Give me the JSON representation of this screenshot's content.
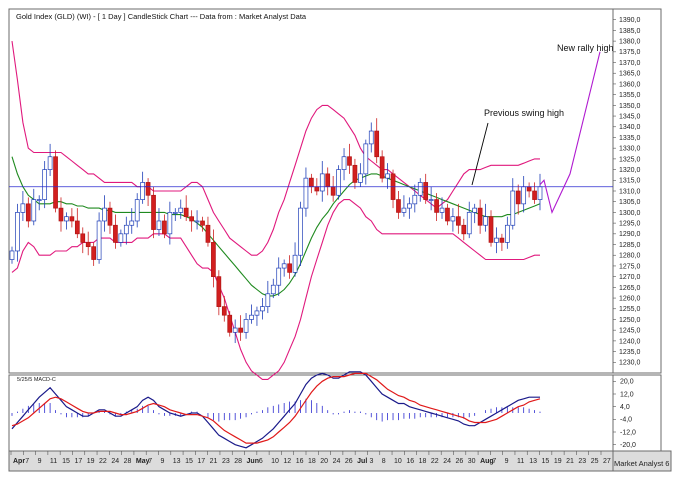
{
  "chart_data": [
    {
      "type": "candlestick",
      "title": "Gold Index (GLD) (WI) - [ 1 Day ] CandleStick Chart --- Data from : Market Analyst Data",
      "ylim": [
        1225,
        1395
      ],
      "y_ticks": [
        "1230,0",
        "1235,0",
        "1240,0",
        "1245,0",
        "1250,0",
        "1255,0",
        "1260,0",
        "1265,0",
        "1270,0",
        "1275,0",
        "1280,0",
        "1285,0",
        "1290,0",
        "1295,0",
        "1300,0",
        "1305,0",
        "1310,0",
        "1315,0",
        "1320,0",
        "1325,0",
        "1330,0",
        "1335,0",
        "1340,0",
        "1345,0",
        "1350,0",
        "1355,0",
        "1360,0",
        "1365,0",
        "1370,0",
        "1375,0",
        "1380,0",
        "1385,0",
        "1390,0"
      ],
      "horizontal_line": 1312,
      "annotations": [
        {
          "label": "New rally high"
        },
        {
          "label": "Previous swing high"
        }
      ],
      "x_labels": [
        "Apr",
        "7",
        "9",
        "11",
        "15",
        "17",
        "19",
        "22",
        "24",
        "28",
        "May",
        "7",
        "9",
        "13",
        "15",
        "17",
        "21",
        "23",
        "28",
        "Jun",
        "6",
        "10",
        "12",
        "16",
        "18",
        "20",
        "24",
        "26",
        "Jul",
        "3",
        "8",
        "10",
        "16",
        "18",
        "22",
        "24",
        "26",
        "30",
        "Aug",
        "7",
        "9",
        "11",
        "13",
        "15",
        "19",
        "21",
        "23",
        "25",
        "27"
      ],
      "candles_close": [
        1282,
        1300,
        1304,
        1296,
        1306,
        1306,
        1320,
        1326,
        1302,
        1296,
        1298,
        1296,
        1290,
        1286,
        1284,
        1278,
        1296,
        1302,
        1294,
        1286,
        1290,
        1294,
        1296,
        1306,
        1314,
        1308,
        1292,
        1296,
        1290,
        1300,
        1300,
        1302,
        1298,
        1296,
        1296,
        1294,
        1286,
        1270,
        1256,
        1252,
        1244,
        1246,
        1244,
        1250,
        1252,
        1254,
        1256,
        1262,
        1266,
        1274,
        1276,
        1272,
        1280,
        1302,
        1316,
        1312,
        1310,
        1318,
        1312,
        1308,
        1320,
        1326,
        1322,
        1314,
        1318,
        1332,
        1338,
        1326,
        1316,
        1318,
        1306,
        1300,
        1302,
        1304,
        1308,
        1314,
        1306,
        1306,
        1300,
        1302,
        1296,
        1298,
        1294,
        1290,
        1300,
        1302,
        1294,
        1298,
        1286,
        1288,
        1286,
        1294,
        1310,
        1304,
        1312,
        1310,
        1306,
        1312
      ],
      "bollinger_upper": [
        1380,
        1362,
        1342,
        1330,
        1328,
        1328,
        1328,
        1328,
        1328,
        1328,
        1326,
        1324,
        1322,
        1320,
        1318,
        1318,
        1316,
        1314,
        1314,
        1314,
        1314,
        1314,
        1314,
        1312,
        1312,
        1312,
        1310,
        1310,
        1310,
        1310,
        1310,
        1310,
        1312,
        1314,
        1314,
        1312,
        1306,
        1300,
        1296,
        1292,
        1288,
        1286,
        1284,
        1282,
        1280,
        1280,
        1282,
        1286,
        1292,
        1300,
        1306,
        1314,
        1322,
        1330,
        1338,
        1344,
        1348,
        1350,
        1350,
        1348,
        1346,
        1344,
        1340,
        1336,
        1330,
        1326,
        1324,
        1322,
        1320,
        1320,
        1318,
        1316,
        1314,
        1312,
        1310,
        1308,
        1306,
        1304,
        1302,
        1304,
        1306,
        1310,
        1314,
        1318,
        1320,
        1320,
        1320,
        1321,
        1322,
        1322,
        1322,
        1322,
        1322,
        1322,
        1323,
        1324,
        1325,
        1325
      ],
      "bollinger_middle": [
        1326,
        1318,
        1312,
        1308,
        1306,
        1304,
        1304,
        1304,
        1305,
        1305,
        1304,
        1304,
        1303,
        1303,
        1302,
        1302,
        1302,
        1301,
        1301,
        1300,
        1300,
        1300,
        1300,
        1300,
        1300,
        1300,
        1300,
        1300,
        1300,
        1299,
        1299,
        1299,
        1298,
        1297,
        1295,
        1293,
        1290,
        1287,
        1284,
        1281,
        1278,
        1275,
        1272,
        1269,
        1266,
        1264,
        1262,
        1261,
        1261,
        1262,
        1264,
        1267,
        1271,
        1276,
        1282,
        1288,
        1293,
        1297,
        1300,
        1304,
        1307,
        1310,
        1313,
        1315,
        1316,
        1317,
        1318,
        1318,
        1317,
        1316,
        1315,
        1314,
        1313,
        1312,
        1311,
        1310,
        1309,
        1308,
        1307,
        1306,
        1305,
        1304,
        1303,
        1302,
        1301,
        1300,
        1299,
        1298,
        1298,
        1298,
        1298,
        1299,
        1299,
        1300,
        1301,
        1302,
        1303,
        1304
      ],
      "bollinger_lower": [
        1272,
        1274,
        1282,
        1286,
        1284,
        1280,
        1280,
        1280,
        1282,
        1282,
        1282,
        1284,
        1284,
        1286,
        1286,
        1286,
        1288,
        1288,
        1288,
        1286,
        1286,
        1286,
        1286,
        1288,
        1288,
        1288,
        1290,
        1290,
        1290,
        1288,
        1288,
        1288,
        1284,
        1280,
        1276,
        1274,
        1274,
        1272,
        1266,
        1260,
        1252,
        1244,
        1236,
        1230,
        1226,
        1224,
        1222,
        1222,
        1224,
        1226,
        1230,
        1236,
        1242,
        1250,
        1260,
        1270,
        1278,
        1286,
        1294,
        1300,
        1304,
        1306,
        1306,
        1304,
        1302,
        1298,
        1296,
        1292,
        1290,
        1290,
        1290,
        1290,
        1290,
        1290,
        1290,
        1290,
        1290,
        1290,
        1290,
        1290,
        1290,
        1290,
        1288,
        1286,
        1284,
        1282,
        1280,
        1278,
        1278,
        1278,
        1278,
        1278,
        1278,
        1278,
        1278,
        1279,
        1280,
        1280
      ],
      "projection": [
        [
          1313,
          0
        ],
        [
          1315,
          4
        ],
        [
          1300,
          12
        ],
        [
          1318,
          30
        ],
        [
          1375,
          60
        ]
      ]
    },
    {
      "type": "line",
      "indicator_label": "5/25/5 MACD-C",
      "ylim": [
        -24,
        24
      ],
      "y_ticks": [
        "20,0",
        "12,0",
        "4,0",
        "-4,0",
        "-12,0",
        "-20,0"
      ],
      "macd": [
        -10,
        -6,
        -2,
        2,
        6,
        10,
        13,
        16,
        12,
        8,
        4,
        2,
        0,
        -2,
        -2,
        0,
        2,
        2,
        0,
        -2,
        -2,
        0,
        2,
        4,
        8,
        10,
        8,
        4,
        2,
        0,
        -1,
        -2,
        -1,
        0,
        0,
        -2,
        -6,
        -10,
        -14,
        -16,
        -18,
        -20,
        -21,
        -22,
        -20,
        -18,
        -16,
        -13,
        -10,
        -6,
        -2,
        2,
        6,
        12,
        18,
        22,
        24,
        25,
        24,
        22,
        22,
        24,
        26,
        26,
        26,
        24,
        20,
        16,
        12,
        10,
        8,
        6,
        6,
        4,
        3,
        2,
        1,
        0,
        -1,
        -2,
        -3,
        -4,
        -5,
        -7,
        -8,
        -8,
        -6,
        -4,
        -2,
        0,
        2,
        4,
        6,
        8,
        9,
        10,
        10,
        10
      ],
      "signal": [
        -8,
        -7,
        -5,
        -3,
        0,
        3,
        6,
        9,
        10,
        9,
        7,
        5,
        3,
        1,
        0,
        0,
        1,
        1,
        1,
        0,
        -1,
        -1,
        0,
        1,
        3,
        5,
        6,
        5,
        4,
        2,
        1,
        0,
        -1,
        -1,
        -1,
        -2,
        -3,
        -5,
        -8,
        -11,
        -13,
        -15,
        -17,
        -19,
        -19,
        -19,
        -18,
        -17,
        -15,
        -12,
        -9,
        -6,
        -2,
        3,
        8,
        13,
        17,
        20,
        22,
        23,
        23,
        23,
        24,
        25,
        25,
        25,
        23,
        21,
        18,
        15,
        13,
        11,
        10,
        8,
        7,
        5,
        4,
        3,
        2,
        1,
        0,
        -1,
        -2,
        -3,
        -5,
        -6,
        -6,
        -6,
        -5,
        -4,
        -2,
        0,
        2,
        4,
        5,
        7,
        8,
        9
      ]
    }
  ],
  "footer": {
    "watermark": "Market Analyst 6"
  }
}
